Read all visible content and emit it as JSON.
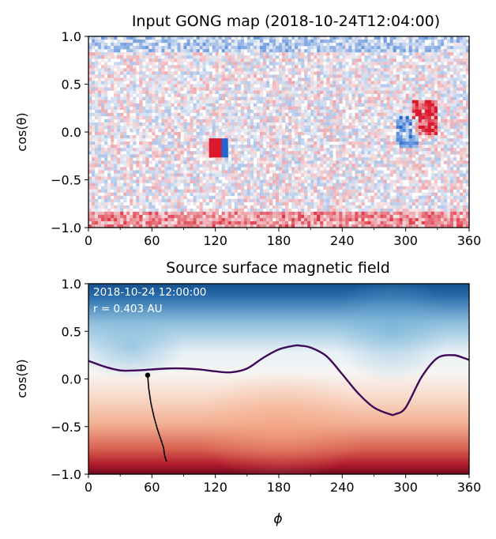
{
  "chart_data": [
    {
      "type": "heatmap",
      "title": "Input GONG map (2018-10-24T12:04:00)",
      "xlabel": "",
      "ylabel": "cos(θ)",
      "xlim": [
        0,
        360
      ],
      "ylim": [
        -1,
        1
      ],
      "xticks": [
        0,
        60,
        120,
        180,
        240,
        300,
        360
      ],
      "yticks": [
        1.0,
        0.5,
        0.0,
        -0.5,
        -1.0
      ],
      "ytick_labels": [
        "1.0",
        "0.5",
        "0.0",
        "−0.5",
        "−1.0"
      ],
      "colormap": "RdBu",
      "features": [
        {
          "x": 123,
          "y": -0.17,
          "sign": "bipolar"
        },
        {
          "x": 318,
          "y": 0.15,
          "sign": "positive"
        },
        {
          "x": 302,
          "y": 0.0,
          "sign": "negative"
        },
        {
          "x": 0,
          "y": -0.92,
          "sign": "positive-band"
        },
        {
          "x": 0,
          "y": 0.9,
          "sign": "negative-band"
        }
      ]
    },
    {
      "type": "heatmap",
      "title": "Source surface magnetic field",
      "xlabel": "ϕ",
      "ylabel": "cos(θ)",
      "xlim": [
        0,
        360
      ],
      "ylim": [
        -1,
        1
      ],
      "xticks": [
        0,
        60,
        120,
        180,
        240,
        300,
        360
      ],
      "yticks": [
        1.0,
        0.5,
        0.0,
        -0.5,
        -1.0
      ],
      "ytick_labels": [
        "1.0",
        "0.5",
        "0.0",
        "−0.5",
        "−1.0"
      ],
      "colormap": "RdBu",
      "annotation": [
        "2018-10-24 12:00:00",
        "r = 0.403 AU"
      ],
      "neutral_line": {
        "x": [
          0,
          15,
          30,
          45,
          60,
          75,
          90,
          105,
          120,
          135,
          150,
          165,
          180,
          195,
          200,
          210,
          225,
          240,
          255,
          270,
          285,
          290,
          300,
          315,
          330,
          345,
          355,
          360
        ],
        "y": [
          0.19,
          0.13,
          0.09,
          0.09,
          0.1,
          0.11,
          0.11,
          0.1,
          0.08,
          0.07,
          0.11,
          0.22,
          0.31,
          0.35,
          0.35,
          0.33,
          0.24,
          0.05,
          -0.15,
          -0.3,
          -0.37,
          -0.37,
          -0.3,
          0.02,
          0.22,
          0.25,
          0.22,
          0.2
        ]
      },
      "field_line": {
        "x": [
          56,
          57,
          59,
          62,
          65,
          68,
          71,
          72,
          73,
          74
        ],
        "y": [
          0.04,
          -0.1,
          -0.25,
          -0.4,
          -0.52,
          -0.62,
          -0.72,
          -0.8,
          -0.84,
          -0.87
        ],
        "start_marker": true
      }
    }
  ]
}
